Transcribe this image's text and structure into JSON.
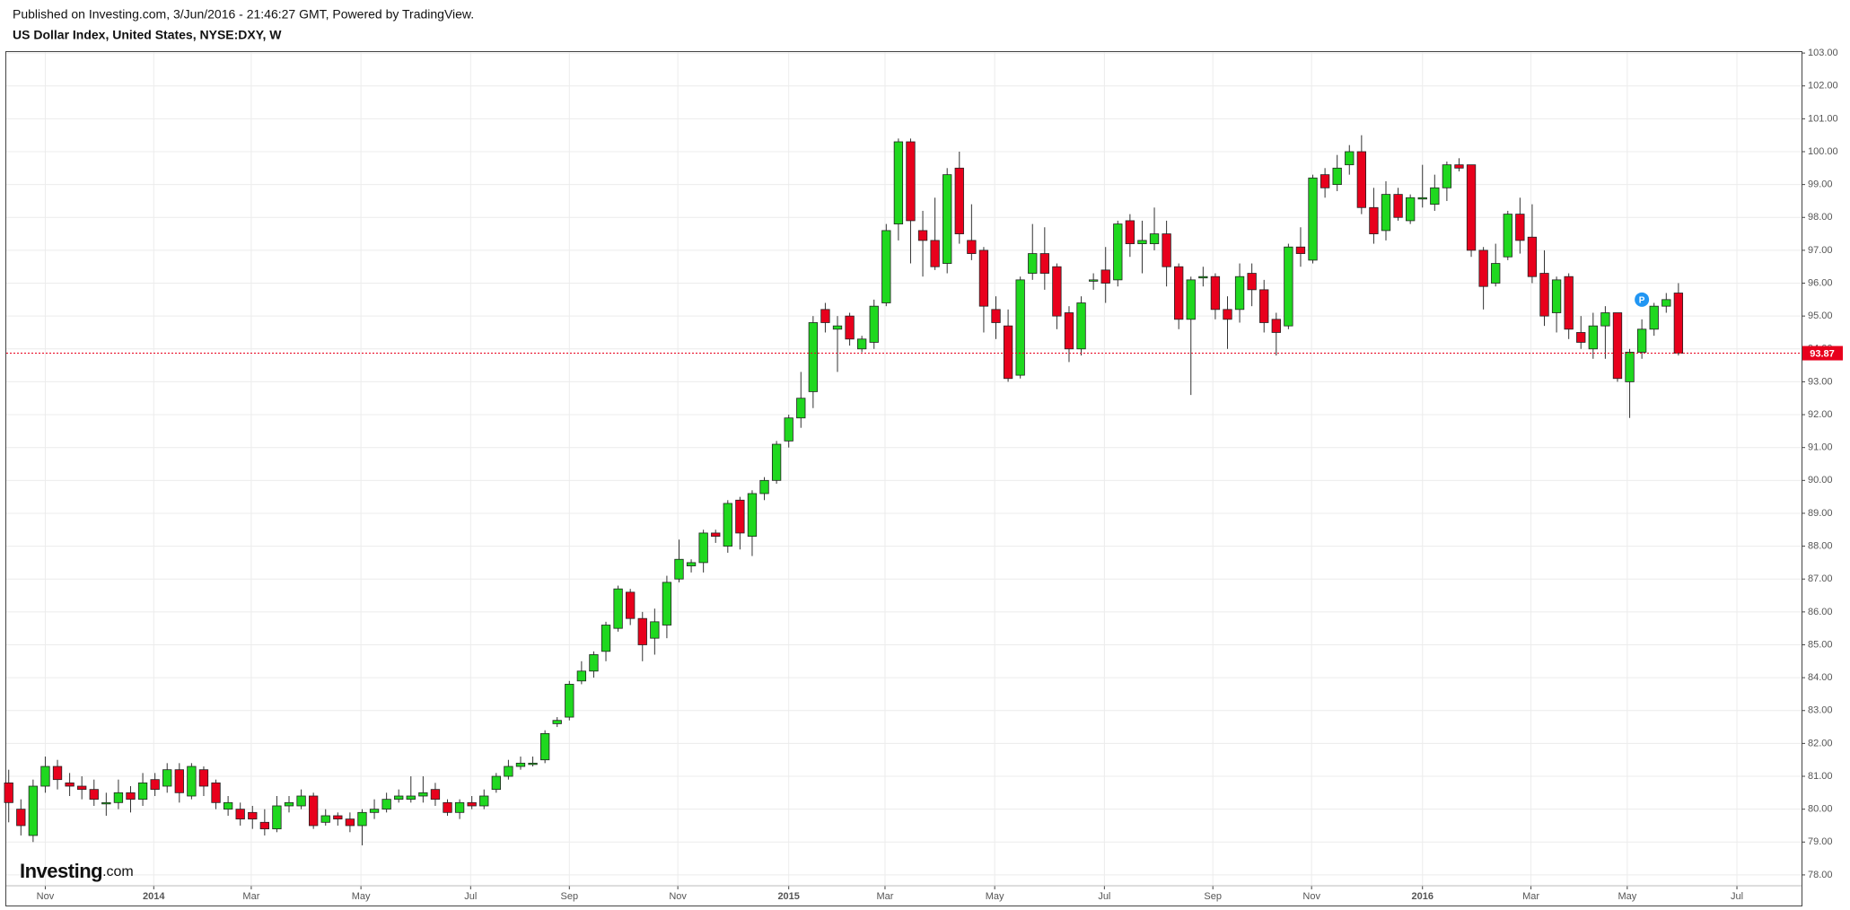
{
  "header": {
    "published": "Published on Investing.com, 3/Jun/2016 - 21:46:27 GMT, Powered by TradingView.",
    "instrument": "US Dollar Index, United States, NYSE:DXY, W"
  },
  "chart_data": {
    "type": "candlestick",
    "up_color": "#1fd81f",
    "down_color": "#e8001c",
    "grid": true,
    "open": [
      80.8,
      80.0,
      79.2,
      80.7,
      81.3,
      80.8,
      80.7,
      80.6,
      80.2,
      80.2,
      80.5,
      80.3,
      80.9,
      80.7,
      81.2,
      80.4,
      81.2,
      80.8,
      80.0,
      80.0,
      79.9,
      79.6,
      79.4,
      80.1,
      80.1,
      80.4,
      79.6,
      79.8,
      79.7,
      79.5,
      79.9,
      80.0,
      80.3,
      80.3,
      80.4,
      80.6,
      80.2,
      79.9,
      80.2,
      80.1,
      80.6,
      81.0,
      81.3,
      81.4,
      81.5,
      82.6,
      82.8,
      83.9,
      84.2,
      84.8,
      85.5,
      86.6,
      85.8,
      85.2,
      85.6,
      87.0,
      87.4,
      87.5,
      88.4,
      88.0,
      89.4,
      88.3,
      89.6,
      90.0,
      91.2,
      91.9,
      92.7,
      95.2,
      94.6,
      95.0,
      94.0,
      94.2,
      95.4,
      97.8,
      100.3,
      97.6,
      97.3,
      96.6,
      99.5,
      97.3,
      97.0,
      95.2,
      94.7,
      93.2,
      96.3,
      96.9,
      96.5,
      95.1,
      94.0,
      96.1,
      96.4,
      96.1,
      97.9,
      97.2,
      97.2,
      97.5,
      96.5,
      94.9,
      96.2,
      96.2,
      95.2,
      95.2,
      96.3,
      95.8,
      94.9,
      94.7,
      97.1,
      96.7,
      99.3,
      99.0,
      99.6,
      100.0,
      98.3,
      97.6,
      98.7,
      97.9,
      98.6,
      98.4,
      98.9,
      99.6,
      99.6,
      97.0,
      96.0,
      96.8,
      98.1,
      97.4,
      96.3,
      95.1,
      96.2,
      94.5,
      94.0,
      94.7,
      95.1,
      93.0,
      93.9,
      94.6,
      95.3,
      95.7
    ],
    "high": [
      81.2,
      80.3,
      80.9,
      81.6,
      81.5,
      81.1,
      81.0,
      80.9,
      80.5,
      80.9,
      80.7,
      81.1,
      81.1,
      81.4,
      81.4,
      81.4,
      81.3,
      80.9,
      80.4,
      80.2,
      80.1,
      80.0,
      80.4,
      80.4,
      80.6,
      80.5,
      80.0,
      79.9,
      79.9,
      80.0,
      80.3,
      80.5,
      80.6,
      81.0,
      81.0,
      80.8,
      80.3,
      80.3,
      80.4,
      80.6,
      81.1,
      81.5,
      81.6,
      81.6,
      82.4,
      82.8,
      83.9,
      84.5,
      84.8,
      85.7,
      86.8,
      86.7,
      86.0,
      86.1,
      87.1,
      88.2,
      87.6,
      88.5,
      88.5,
      89.4,
      89.5,
      89.7,
      90.1,
      91.2,
      92.0,
      93.3,
      95.0,
      95.4,
      95.0,
      95.1,
      94.4,
      95.5,
      97.8,
      100.4,
      100.4,
      98.2,
      98.6,
      99.5,
      100.0,
      98.4,
      97.1,
      95.6,
      95.2,
      96.2,
      97.8,
      97.7,
      96.6,
      95.3,
      95.6,
      96.3,
      97.1,
      97.9,
      98.1,
      97.9,
      98.3,
      97.9,
      96.6,
      96.2,
      96.5,
      96.3,
      95.6,
      96.6,
      96.6,
      96.1,
      95.1,
      97.2,
      97.7,
      99.3,
      99.5,
      99.9,
      100.2,
      100.5,
      98.9,
      99.1,
      98.9,
      98.7,
      99.6,
      99.3,
      99.7,
      99.8,
      99.6,
      97.1,
      97.2,
      98.2,
      98.6,
      98.4,
      97.0,
      96.2,
      96.3,
      95.0,
      95.1,
      95.3,
      95.1,
      94.0,
      94.9,
      95.4,
      95.7,
      96.0
    ],
    "low": [
      79.6,
      79.2,
      79.0,
      80.5,
      80.6,
      80.4,
      80.3,
      80.1,
      79.8,
      80.0,
      79.9,
      80.1,
      80.4,
      80.5,
      80.2,
      80.3,
      80.4,
      80.0,
      79.8,
      79.5,
      79.4,
      79.2,
      79.3,
      79.9,
      80.0,
      79.4,
      79.5,
      79.5,
      79.3,
      78.9,
      79.7,
      79.9,
      80.2,
      80.2,
      80.2,
      80.1,
      79.8,
      79.7,
      80.0,
      80.0,
      80.5,
      80.9,
      81.2,
      81.3,
      81.4,
      82.5,
      82.7,
      83.8,
      84.0,
      84.5,
      85.4,
      85.6,
      84.5,
      84.7,
      85.2,
      86.9,
      87.2,
      87.2,
      88.1,
      87.8,
      87.9,
      87.7,
      89.4,
      89.9,
      91.0,
      91.6,
      92.2,
      94.5,
      93.3,
      94.1,
      93.9,
      94.0,
      95.3,
      97.3,
      96.6,
      96.2,
      96.4,
      96.3,
      97.2,
      96.7,
      94.5,
      94.3,
      93.0,
      93.1,
      96.1,
      95.8,
      94.6,
      93.6,
      93.8,
      95.8,
      95.4,
      95.9,
      96.8,
      96.3,
      97.0,
      95.9,
      94.6,
      92.6,
      95.9,
      94.9,
      94.0,
      94.8,
      95.3,
      94.5,
      93.8,
      94.6,
      96.5,
      96.6,
      98.6,
      98.8,
      99.3,
      98.1,
      97.2,
      97.3,
      97.9,
      97.8,
      98.3,
      98.2,
      98.5,
      99.4,
      96.8,
      95.2,
      95.9,
      96.7,
      96.9,
      96.0,
      94.7,
      94.5,
      94.3,
      94.0,
      93.7,
      93.7,
      93.0,
      91.9,
      93.7,
      94.4,
      95.1,
      93.8
    ],
    "close": [
      80.2,
      79.5,
      80.7,
      81.3,
      80.9,
      80.7,
      80.6,
      80.3,
      80.2,
      80.5,
      80.3,
      80.8,
      80.6,
      81.2,
      80.5,
      81.3,
      80.7,
      80.2,
      80.2,
      79.7,
      79.7,
      79.4,
      80.1,
      80.2,
      80.4,
      79.5,
      79.8,
      79.7,
      79.5,
      79.9,
      80.0,
      80.3,
      80.4,
      80.4,
      80.5,
      80.3,
      79.9,
      80.2,
      80.1,
      80.4,
      81.0,
      81.3,
      81.4,
      81.4,
      82.3,
      82.7,
      83.8,
      84.2,
      84.7,
      85.6,
      86.7,
      85.8,
      85.0,
      85.7,
      86.9,
      87.6,
      87.5,
      88.4,
      88.3,
      89.3,
      88.4,
      89.6,
      90.0,
      91.1,
      91.9,
      92.5,
      94.8,
      94.8,
      94.7,
      94.3,
      94.3,
      95.3,
      97.6,
      100.3,
      97.9,
      97.3,
      96.5,
      99.3,
      97.5,
      96.9,
      95.3,
      94.8,
      93.1,
      96.1,
      96.9,
      96.3,
      95.0,
      94.0,
      95.4,
      96.1,
      96.0,
      97.8,
      97.2,
      97.3,
      97.5,
      96.5,
      94.9,
      96.1,
      96.2,
      95.2,
      94.9,
      96.2,
      95.8,
      94.8,
      94.5,
      97.1,
      96.9,
      99.2,
      98.9,
      99.5,
      100.0,
      98.3,
      97.5,
      98.7,
      98.0,
      98.6,
      98.6,
      98.9,
      99.6,
      99.5,
      97.0,
      95.9,
      96.6,
      98.1,
      97.3,
      96.2,
      95.0,
      96.1,
      94.6,
      94.2,
      94.7,
      95.1,
      93.1,
      93.9,
      94.6,
      95.3,
      95.5,
      93.87
    ],
    "last_price": 93.87,
    "marker_label": "P",
    "watermark": {
      "brand": "Investing",
      "suffix": ".com"
    },
    "xlim": [
      -0.2,
      147.1
    ],
    "xticks": [
      {
        "value": 3,
        "label": "Nov"
      },
      {
        "value": 11.9,
        "label": "2014"
      },
      {
        "value": 19.9,
        "label": "Mar"
      },
      {
        "value": 28.9,
        "label": "May"
      },
      {
        "value": 37.9,
        "label": "Jul"
      },
      {
        "value": 46,
        "label": "Sep"
      },
      {
        "value": 54.9,
        "label": "Nov"
      },
      {
        "value": 64,
        "label": "2015"
      },
      {
        "value": 71.9,
        "label": "Mar"
      },
      {
        "value": 80.9,
        "label": "May"
      },
      {
        "value": 89.9,
        "label": "Jul"
      },
      {
        "value": 98.8,
        "label": "Sep"
      },
      {
        "value": 106.9,
        "label": "Nov"
      },
      {
        "value": 116,
        "label": "2016"
      },
      {
        "value": 124.9,
        "label": "Mar"
      },
      {
        "value": 132.8,
        "label": "May"
      },
      {
        "value": 141.8,
        "label": "Jul"
      }
    ],
    "ylim": [
      77.67,
      103.03
    ],
    "yticks": [
      {
        "value": 78,
        "label": "78.00"
      },
      {
        "value": 79,
        "label": "79.00"
      },
      {
        "value": 80,
        "label": "80.00"
      },
      {
        "value": 81,
        "label": "81.00"
      },
      {
        "value": 82,
        "label": "82.00"
      },
      {
        "value": 83,
        "label": "83.00"
      },
      {
        "value": 84,
        "label": "84.00"
      },
      {
        "value": 85,
        "label": "85.00"
      },
      {
        "value": 86,
        "label": "86.00"
      },
      {
        "value": 87,
        "label": "87.00"
      },
      {
        "value": 88,
        "label": "88.00"
      },
      {
        "value": 89,
        "label": "89.00"
      },
      {
        "value": 90,
        "label": "90.00"
      },
      {
        "value": 91,
        "label": "91.00"
      },
      {
        "value": 92,
        "label": "92.00"
      },
      {
        "value": 93,
        "label": "93.00"
      },
      {
        "value": 94,
        "label": "94.00"
      },
      {
        "value": 95,
        "label": "95.00"
      },
      {
        "value": 96,
        "label": "96.00"
      },
      {
        "value": 97,
        "label": "97.00"
      },
      {
        "value": 98,
        "label": "98.00"
      },
      {
        "value": 99,
        "label": "99.00"
      },
      {
        "value": 100,
        "label": "100.00"
      },
      {
        "value": 101,
        "label": "101.00"
      },
      {
        "value": 102,
        "label": "102.00"
      },
      {
        "value": 103,
        "label": "103.00"
      }
    ]
  }
}
